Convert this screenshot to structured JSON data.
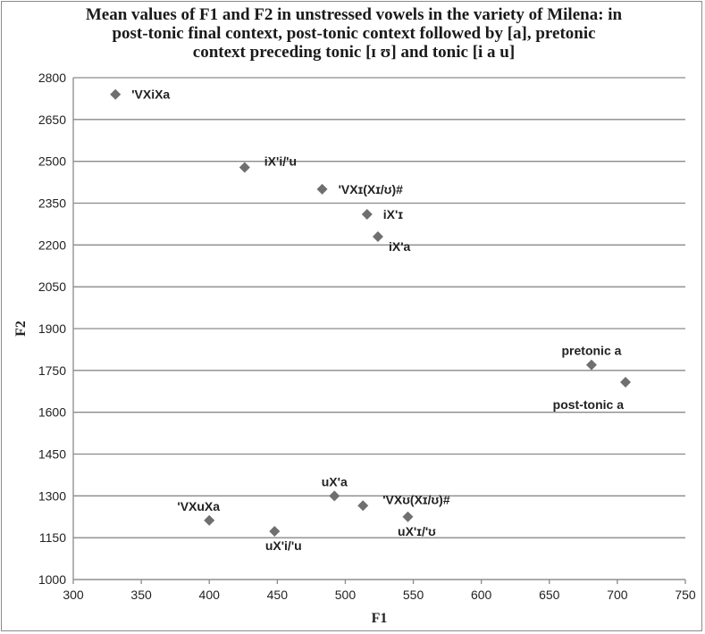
{
  "chart_data": {
    "type": "scatter",
    "title_lines": [
      "Mean values of F1 and F2 in unstressed vowels in the variety of Milena: in",
      "post-tonic final context, post-tonic context followed by [a], pretonic",
      "context preceding tonic [ɪ ʊ] and tonic [i a u]"
    ],
    "xlabel": "F1",
    "ylabel": "F2",
    "xlim": [
      300,
      750
    ],
    "ylim": [
      1000,
      2800
    ],
    "xticks": [
      300,
      350,
      400,
      450,
      500,
      550,
      600,
      650,
      700,
      750
    ],
    "yticks": [
      1000,
      1150,
      1300,
      1450,
      1600,
      1750,
      1900,
      2050,
      2200,
      2350,
      2500,
      2650,
      2800
    ],
    "grid": "horizontal",
    "legend": "none",
    "marker_color": "#6f6f6f",
    "points": [
      {
        "label": "'VXiXa",
        "x": 331,
        "y": 2740,
        "label_pos": "right"
      },
      {
        "label": "iX'i/'u",
        "x": 426,
        "y": 2478,
        "label_pos": "upper-right"
      },
      {
        "label": "'VXɪ(Xɪ/ʊ)#",
        "x": 483,
        "y": 2400,
        "label_pos": "right"
      },
      {
        "label": "iX'ɪ",
        "x": 516,
        "y": 2310,
        "label_pos": "right"
      },
      {
        "label": "iX'a",
        "x": 524,
        "y": 2230,
        "label_pos": "lower-right"
      },
      {
        "label": "pretonic a",
        "x": 681,
        "y": 1770,
        "label_pos": "above"
      },
      {
        "label": "post-tonic a",
        "x": 706,
        "y": 1708,
        "label_pos": "lower-left"
      },
      {
        "label": "uX'a",
        "x": 492,
        "y": 1300,
        "label_pos": "above"
      },
      {
        "label": "'VXʊ(Xɪ/ʊ)#",
        "x": 513,
        "y": 1265,
        "label_pos": "upper-right"
      },
      {
        "label": "'VXuXa",
        "x": 400,
        "y": 1212,
        "label_pos": "above-left"
      },
      {
        "label": "uX'ɪ/'ʊ",
        "x": 546,
        "y": 1225,
        "label_pos": "below"
      },
      {
        "label": "uX'i/'u",
        "x": 448,
        "y": 1173,
        "label_pos": "below"
      }
    ]
  }
}
